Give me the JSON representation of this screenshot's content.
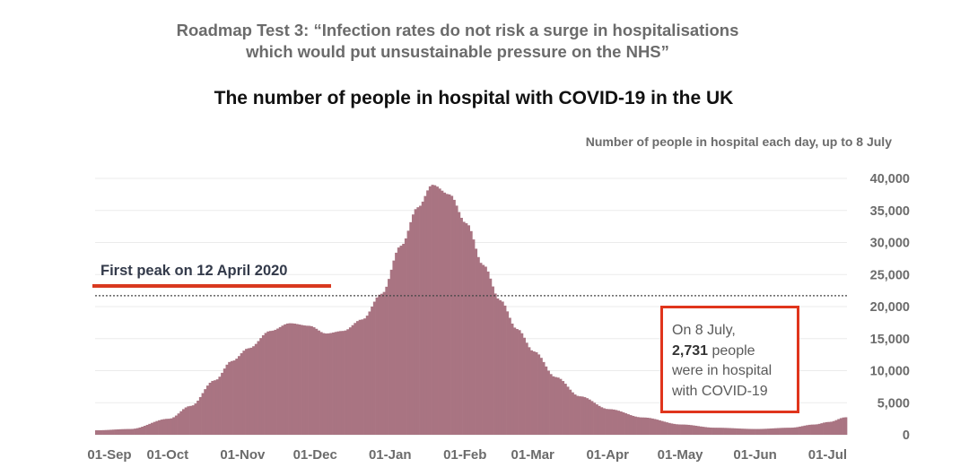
{
  "header": {
    "roadmap_line1": "Roadmap Test 3: “Infection rates do not risk a surge in hospitalisations",
    "roadmap_line2": "which would put unsustainable pressure on the NHS”"
  },
  "chart_data": {
    "type": "bar",
    "title": "The number of people in hospital with COVID-19 in the UK",
    "subtitle": "Number of people in hospital each day, up to 8 July",
    "xlabel": "",
    "ylabel": "",
    "x_ticks": [
      "01-Sep",
      "01-Oct",
      "01-Nov",
      "01-Dec",
      "01-Jan",
      "01-Feb",
      "01-Mar",
      "01-Apr",
      "01-May",
      "01-Jun",
      "01-Jul"
    ],
    "y_ticks": [
      "0",
      "5,000",
      "10,000",
      "15,000",
      "20,000",
      "25,000",
      "30,000",
      "35,000",
      "40,000"
    ],
    "ylim": [
      0,
      40000
    ],
    "x_range": [
      "2020-09-01",
      "2021-07-08"
    ],
    "grid": true,
    "bar_color": "#a97482",
    "series_keypoints": [
      {
        "date": "2020-09-01",
        "value": 700
      },
      {
        "date": "2020-09-15",
        "value": 900
      },
      {
        "date": "2020-10-01",
        "value": 2500
      },
      {
        "date": "2020-10-10",
        "value": 4500
      },
      {
        "date": "2020-10-20",
        "value": 8500
      },
      {
        "date": "2020-10-27",
        "value": 11500
      },
      {
        "date": "2020-11-03",
        "value": 13500
      },
      {
        "date": "2020-11-12",
        "value": 16200
      },
      {
        "date": "2020-11-20",
        "value": 17400
      },
      {
        "date": "2020-11-28",
        "value": 17000
      },
      {
        "date": "2020-12-05",
        "value": 15800
      },
      {
        "date": "2020-12-12",
        "value": 16200
      },
      {
        "date": "2020-12-20",
        "value": 18000
      },
      {
        "date": "2020-12-28",
        "value": 22000
      },
      {
        "date": "2021-01-05",
        "value": 29500
      },
      {
        "date": "2021-01-12",
        "value": 35500
      },
      {
        "date": "2021-01-18",
        "value": 39000
      },
      {
        "date": "2021-01-25",
        "value": 37500
      },
      {
        "date": "2021-02-01",
        "value": 33000
      },
      {
        "date": "2021-02-08",
        "value": 26500
      },
      {
        "date": "2021-02-15",
        "value": 21000
      },
      {
        "date": "2021-02-22",
        "value": 16500
      },
      {
        "date": "2021-03-01",
        "value": 13000
      },
      {
        "date": "2021-03-10",
        "value": 9000
      },
      {
        "date": "2021-03-20",
        "value": 6000
      },
      {
        "date": "2021-04-01",
        "value": 4000
      },
      {
        "date": "2021-04-15",
        "value": 2700
      },
      {
        "date": "2021-05-01",
        "value": 1600
      },
      {
        "date": "2021-05-15",
        "value": 1100
      },
      {
        "date": "2021-06-01",
        "value": 900
      },
      {
        "date": "2021-06-15",
        "value": 1100
      },
      {
        "date": "2021-06-25",
        "value": 1600
      },
      {
        "date": "2021-07-01",
        "value": 2000
      },
      {
        "date": "2021-07-08",
        "value": 2731
      }
    ],
    "reference_line": {
      "label": "First peak on 12 April 2020",
      "value": 21700
    },
    "annotation": {
      "line1": "On 8 July,",
      "value": "2,731",
      "line2_suffix": " people",
      "line3": "were in hospital",
      "line4": "with COVID-19"
    }
  }
}
